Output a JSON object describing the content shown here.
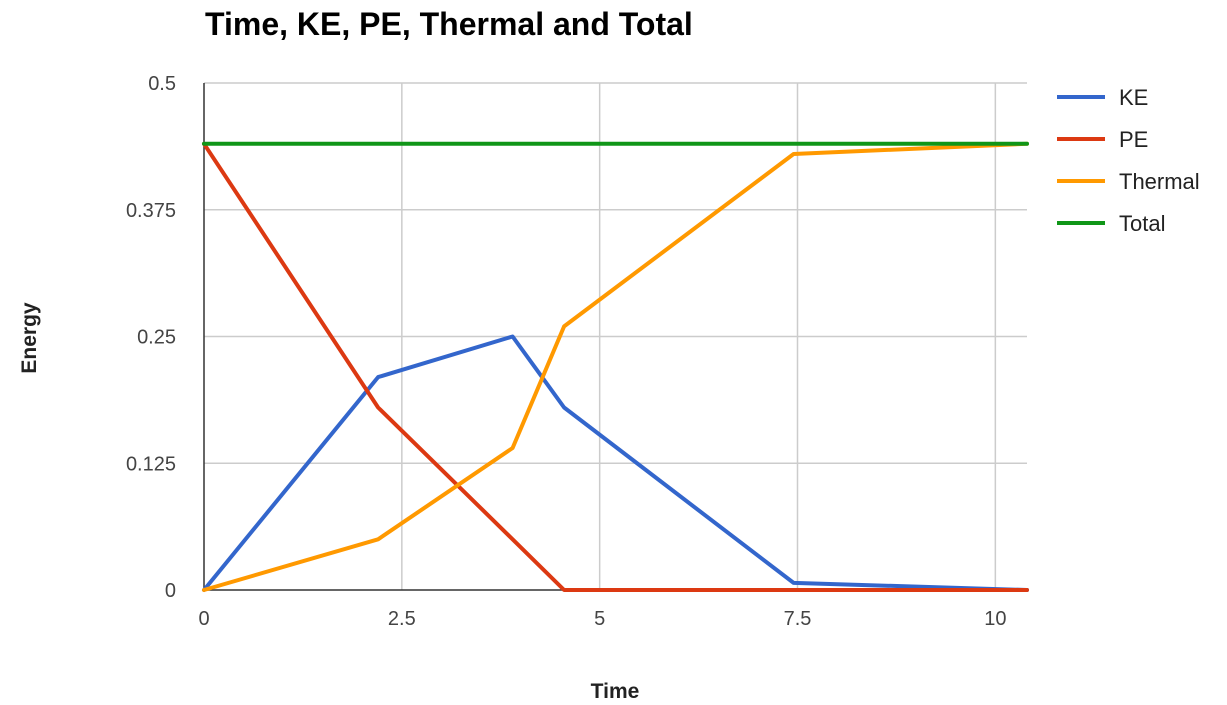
{
  "chart_data": {
    "type": "line",
    "title": "Time, KE, PE, Thermal and Total",
    "xlabel": "Time",
    "ylabel": "Energy",
    "xlim": [
      0,
      10.4
    ],
    "ylim": [
      0,
      0.5
    ],
    "x_ticks": [
      {
        "value": 0,
        "label": "0"
      },
      {
        "value": 2.5,
        "label": "2.5"
      },
      {
        "value": 5,
        "label": "5"
      },
      {
        "value": 7.5,
        "label": "7.5"
      },
      {
        "value": 10,
        "label": "10"
      }
    ],
    "y_ticks": [
      {
        "value": 0,
        "label": "0"
      },
      {
        "value": 0.125,
        "label": "0.125"
      },
      {
        "value": 0.25,
        "label": "0.25"
      },
      {
        "value": 0.375,
        "label": "0.375"
      },
      {
        "value": 0.5,
        "label": "0.5"
      }
    ],
    "grid": true,
    "legend_position": "right",
    "series": [
      {
        "name": "KE",
        "color": "#3366cc",
        "points": [
          [
            0,
            0
          ],
          [
            2.2,
            0.21
          ],
          [
            3.9,
            0.25
          ],
          [
            4.55,
            0.18
          ],
          [
            7.45,
            0.007
          ],
          [
            10.4,
            0
          ]
        ]
      },
      {
        "name": "PE",
        "color": "#dc3912",
        "points": [
          [
            0,
            0.44
          ],
          [
            2.2,
            0.18
          ],
          [
            3.9,
            0.05
          ],
          [
            4.55,
            0
          ],
          [
            7.45,
            0
          ],
          [
            10.4,
            0
          ]
        ]
      },
      {
        "name": "Thermal",
        "color": "#ff9900",
        "points": [
          [
            0,
            0
          ],
          [
            2.2,
            0.05
          ],
          [
            3.9,
            0.14
          ],
          [
            4.55,
            0.26
          ],
          [
            7.45,
            0.43
          ],
          [
            10.4,
            0.44
          ]
        ]
      },
      {
        "name": "Total",
        "color": "#109618",
        "points": [
          [
            0,
            0.44
          ],
          [
            2.2,
            0.44
          ],
          [
            3.9,
            0.44
          ],
          [
            4.55,
            0.44
          ],
          [
            7.45,
            0.44
          ],
          [
            10.4,
            0.44
          ]
        ]
      }
    ]
  }
}
